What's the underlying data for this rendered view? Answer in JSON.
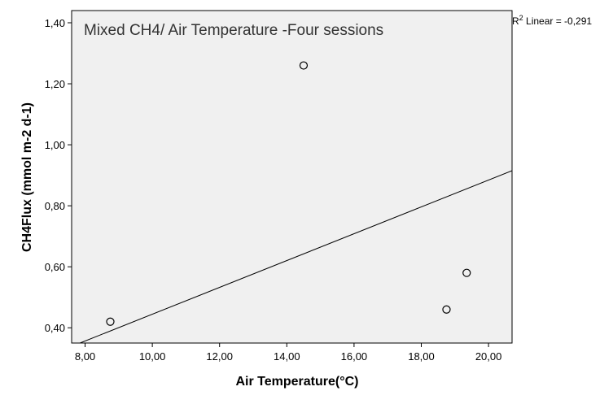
{
  "chart_data": {
    "type": "scatter",
    "title": "Mixed CH4/ Air Temperature -Four sessions",
    "xlabel": "Air Temperature(°C)",
    "ylabel": "CH4Flux (mmol m-2 d-1)",
    "xlim": [
      7.6,
      20.7
    ],
    "ylim": [
      0.35,
      1.44
    ],
    "xticks": [
      8,
      10,
      12,
      14,
      16,
      18,
      20
    ],
    "xtick_labels": [
      "8,00",
      "10,00",
      "12,00",
      "14,00",
      "16,00",
      "18,00",
      "20,00"
    ],
    "yticks": [
      0.4,
      0.6,
      0.8,
      1.0,
      1.2,
      1.4
    ],
    "ytick_labels": [
      "0,40",
      "0,60",
      "0,80",
      "1,00",
      "1,20",
      "1,40"
    ],
    "points": [
      {
        "x": 8.75,
        "y": 0.42
      },
      {
        "x": 14.5,
        "y": 1.26
      },
      {
        "x": 18.75,
        "y": 0.46
      },
      {
        "x": 19.35,
        "y": 0.58
      }
    ],
    "fit_line": {
      "x": [
        7.85,
        20.7
      ],
      "y": [
        0.35,
        0.915
      ]
    },
    "r2_prefix": "R",
    "r2_sup": "2",
    "r2_text": " Linear = -0,291",
    "grid": false,
    "plot_background": "#f0f0f0",
    "point_color": "#000000",
    "line_color": "#000000"
  }
}
